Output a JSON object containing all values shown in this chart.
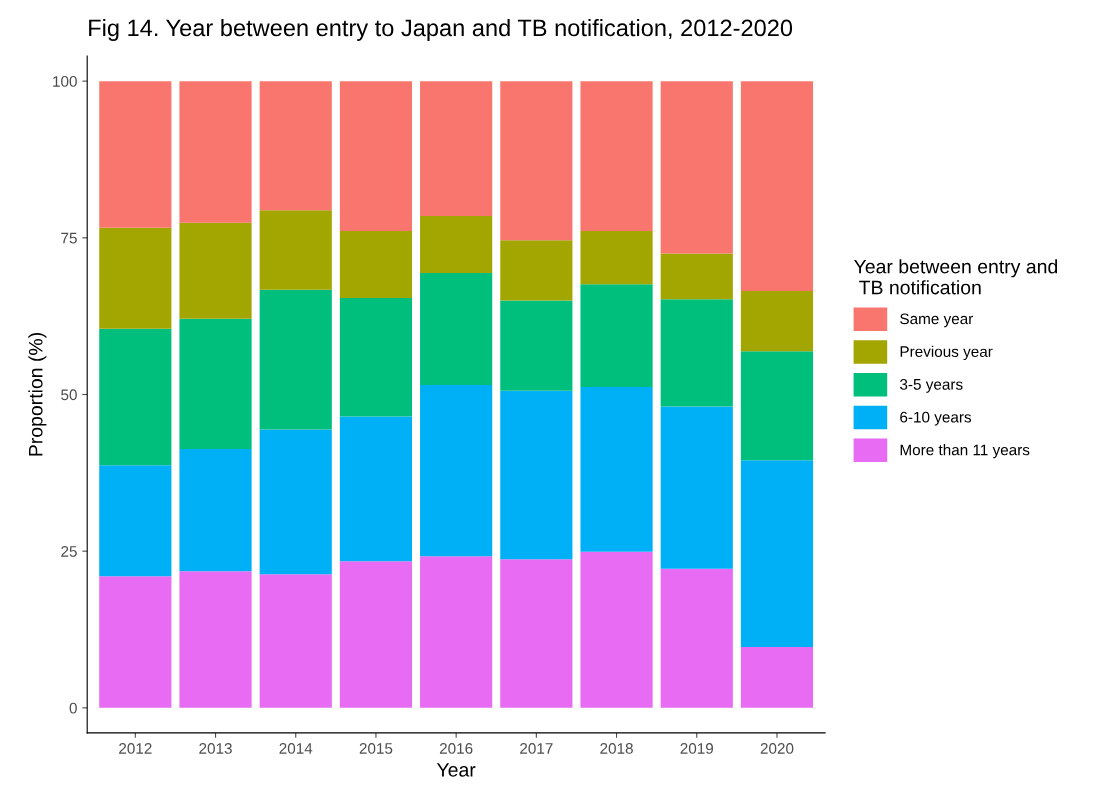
{
  "chart_data": {
    "type": "bar",
    "stacked": true,
    "title": "Fig 14. Year between entry to Japan and TB notification, 2012-2020",
    "xlabel": "Year",
    "ylabel": "Proportion (%)",
    "legend_title": "Year between entry and\n TB notification",
    "legend": "right",
    "categories": [
      "2012",
      "2013",
      "2014",
      "2015",
      "2016",
      "2017",
      "2018",
      "2019",
      "2020"
    ],
    "ylim": [
      -4,
      104
    ],
    "yticks": [
      0,
      25,
      50,
      75,
      100
    ],
    "grid": false,
    "series": [
      {
        "name": "More than 11 years",
        "color": "#e76bf3",
        "values": [
          21.0,
          21.8,
          21.3,
          23.4,
          24.2,
          23.7,
          24.9,
          22.2,
          9.7
        ]
      },
      {
        "name": "6-10 years",
        "color": "#00b0f6",
        "values": [
          17.7,
          19.5,
          23.1,
          23.1,
          27.3,
          26.9,
          26.3,
          25.9,
          29.8
        ]
      },
      {
        "name": "3-5 years",
        "color": "#00bf7d",
        "values": [
          21.8,
          20.8,
          22.3,
          18.9,
          17.9,
          14.4,
          16.4,
          17.1,
          17.4
        ]
      },
      {
        "name": "Previous year",
        "color": "#a3a500",
        "values": [
          16.1,
          15.3,
          12.7,
          10.7,
          9.1,
          9.6,
          8.5,
          7.3,
          9.6
        ]
      },
      {
        "name": "Same year",
        "color": "#f8766d",
        "values": [
          23.4,
          22.6,
          20.6,
          23.9,
          21.5,
          25.4,
          23.9,
          27.5,
          33.5
        ]
      }
    ]
  }
}
